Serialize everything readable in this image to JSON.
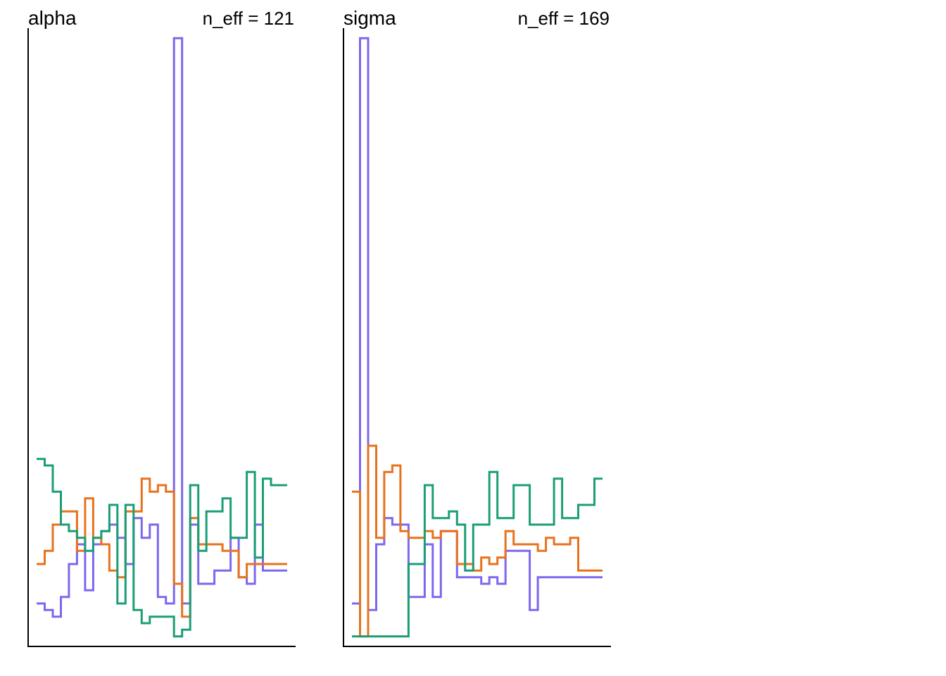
{
  "chart_data": [
    {
      "type": "line",
      "title": "alpha",
      "annotation": "n_eff = 121",
      "xlabel": "",
      "ylabel": "",
      "grid": false,
      "legend": "none",
      "step": true,
      "x": [
        1,
        2,
        3,
        4,
        5,
        6,
        7,
        8,
        9,
        10,
        11,
        12,
        13,
        14,
        15,
        16,
        17,
        18,
        19,
        20,
        21,
        22,
        23,
        24,
        25,
        26,
        27,
        28,
        29,
        30,
        31
      ],
      "xlim": [
        0.5,
        31.5
      ],
      "ylim": [
        0.02,
        0.95
      ],
      "series": [
        {
          "color": "#7B68EE",
          "values": [
            0.08,
            0.07,
            0.06,
            0.09,
            0.14,
            0.17,
            0.1,
            0.17,
            0.19,
            0.2,
            0.18,
            0.14,
            0.21,
            0.18,
            0.2,
            0.09,
            0.08,
            0.94,
            0.08,
            0.2,
            0.11,
            0.11,
            0.13,
            0.13,
            0.18,
            0.12,
            0.11,
            0.2,
            0.13,
            0.13,
            0.13
          ]
        },
        {
          "color": "#E8721C",
          "values": [
            0.14,
            0.16,
            0.2,
            0.22,
            0.22,
            0.16,
            0.24,
            0.18,
            0.17,
            0.13,
            0.12,
            0.22,
            0.22,
            0.27,
            0.25,
            0.26,
            0.25,
            0.11,
            0.06,
            0.21,
            0.17,
            0.17,
            0.17,
            0.16,
            0.16,
            0.12,
            0.14,
            0.14,
            0.14,
            0.14,
            0.14
          ]
        },
        {
          "color": "#1B9E77",
          "values": [
            0.3,
            0.29,
            0.25,
            0.2,
            0.19,
            0.18,
            0.16,
            0.18,
            0.19,
            0.23,
            0.08,
            0.23,
            0.07,
            0.05,
            0.06,
            0.06,
            0.06,
            0.03,
            0.04,
            0.26,
            0.16,
            0.22,
            0.22,
            0.24,
            0.18,
            0.18,
            0.28,
            0.15,
            0.27,
            0.26,
            0.26
          ]
        }
      ]
    },
    {
      "type": "line",
      "title": "sigma",
      "annotation": "n_eff = 169",
      "xlabel": "",
      "ylabel": "",
      "grid": false,
      "legend": "none",
      "step": true,
      "x": [
        1,
        2,
        3,
        4,
        5,
        6,
        7,
        8,
        9,
        10,
        11,
        12,
        13,
        14,
        15,
        16,
        17,
        18,
        19,
        20,
        21,
        22,
        23,
        24,
        25,
        26,
        27,
        28,
        29,
        30,
        31
      ],
      "xlim": [
        0.5,
        31.5
      ],
      "ylim": [
        0.02,
        0.95
      ],
      "series": [
        {
          "color": "#7B68EE",
          "values": [
            0.08,
            0.94,
            0.07,
            0.17,
            0.21,
            0.2,
            0.2,
            0.09,
            0.09,
            0.17,
            0.09,
            0.19,
            0.19,
            0.12,
            0.12,
            0.12,
            0.11,
            0.12,
            0.11,
            0.16,
            0.16,
            0.16,
            0.07,
            0.12,
            0.12,
            0.12,
            0.12,
            0.12,
            0.12,
            0.12,
            0.12
          ]
        },
        {
          "color": "#E8721C",
          "values": [
            0.25,
            0.03,
            0.32,
            0.18,
            0.28,
            0.29,
            0.19,
            0.18,
            0.18,
            0.19,
            0.18,
            0.19,
            0.19,
            0.14,
            0.14,
            0.13,
            0.15,
            0.14,
            0.15,
            0.19,
            0.17,
            0.17,
            0.17,
            0.16,
            0.18,
            0.17,
            0.17,
            0.18,
            0.13,
            0.13,
            0.13
          ]
        },
        {
          "color": "#1B9E77",
          "values": [
            0.03,
            0.03,
            0.03,
            0.03,
            0.03,
            0.03,
            0.03,
            0.14,
            0.14,
            0.26,
            0.21,
            0.21,
            0.22,
            0.2,
            0.13,
            0.2,
            0.2,
            0.28,
            0.21,
            0.21,
            0.26,
            0.26,
            0.2,
            0.2,
            0.2,
            0.27,
            0.21,
            0.21,
            0.23,
            0.23,
            0.27
          ]
        }
      ]
    }
  ]
}
